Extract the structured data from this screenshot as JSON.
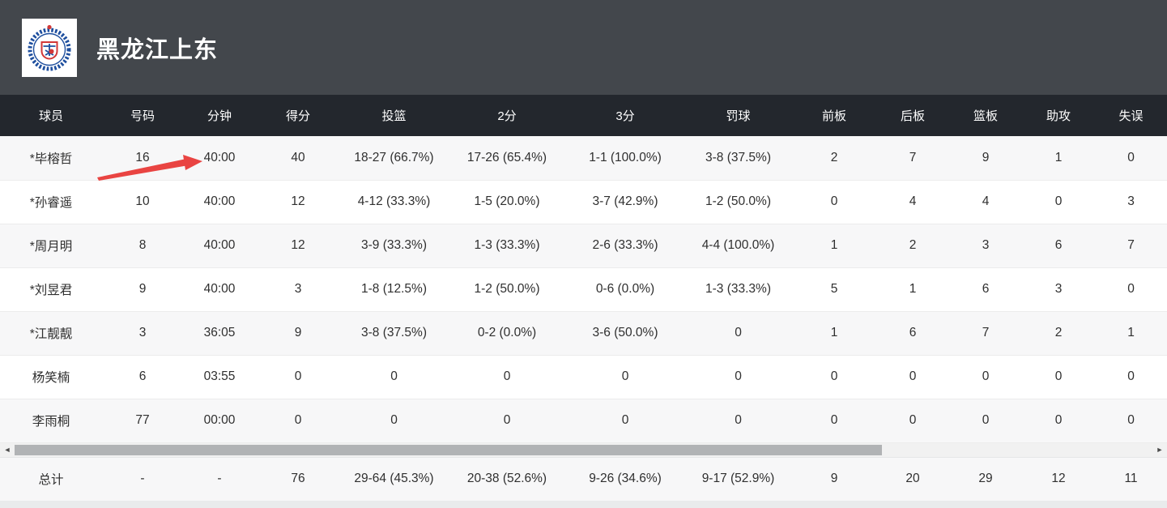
{
  "header": {
    "team_name": "黑龙江上东"
  },
  "table": {
    "columns": [
      "球员",
      "号码",
      "分钟",
      "得分",
      "投篮",
      "2分",
      "3分",
      "罚球",
      "前板",
      "后板",
      "篮板",
      "助攻",
      "失误"
    ],
    "rows": [
      [
        "*毕榕哲",
        "16",
        "40:00",
        "40",
        "18-27 (66.7%)",
        "17-26 (65.4%)",
        "1-1 (100.0%)",
        "3-8 (37.5%)",
        "2",
        "7",
        "9",
        "1",
        "0"
      ],
      [
        "*孙睿遥",
        "10",
        "40:00",
        "12",
        "4-12 (33.3%)",
        "1-5 (20.0%)",
        "3-7 (42.9%)",
        "1-2 (50.0%)",
        "0",
        "4",
        "4",
        "0",
        "3"
      ],
      [
        "*周月明",
        "8",
        "40:00",
        "12",
        "3-9 (33.3%)",
        "1-3 (33.3%)",
        "2-6 (33.3%)",
        "4-4 (100.0%)",
        "1",
        "2",
        "3",
        "6",
        "7"
      ],
      [
        "*刘昱君",
        "9",
        "40:00",
        "3",
        "1-8 (12.5%)",
        "1-2 (50.0%)",
        "0-6 (0.0%)",
        "1-3 (33.3%)",
        "5",
        "1",
        "6",
        "3",
        "0"
      ],
      [
        "*江靓靓",
        "3",
        "36:05",
        "9",
        "3-8 (37.5%)",
        "0-2 (0.0%)",
        "3-6 (50.0%)",
        "0",
        "1",
        "6",
        "7",
        "2",
        "1"
      ],
      [
        "杨笑楠",
        "6",
        "03:55",
        "0",
        "0",
        "0",
        "0",
        "0",
        "0",
        "0",
        "0",
        "0",
        "0"
      ],
      [
        "李雨桐",
        "77",
        "00:00",
        "0",
        "0",
        "0",
        "0",
        "0",
        "0",
        "0",
        "0",
        "0",
        "0"
      ]
    ],
    "totals": [
      "总计",
      "-",
      "-",
      "76",
      "29-64 (45.3%)",
      "20-38 (52.6%)",
      "9-26 (34.6%)",
      "9-17 (52.9%)",
      "9",
      "20",
      "29",
      "12",
      "11"
    ]
  },
  "icons": {
    "scroll_left": "◄",
    "scroll_right": "►"
  },
  "annotation": {
    "type": "red-arrow",
    "points_at": "40:00 (row *毕榕哲, column 分钟)"
  },
  "colors": {
    "banner_bg": "#43474c",
    "table_header_bg": "#23272d",
    "row_alt_bg": "#f7f7f8",
    "row_bg": "#ffffff",
    "totals_bg": "#fafbfc",
    "arrow_red": "#e94442",
    "scrollbar_track": "#f1f1f1",
    "scrollbar_thumb": "#b1b3b5",
    "logo_blue": "#1d4e9e",
    "logo_red": "#d23737"
  }
}
